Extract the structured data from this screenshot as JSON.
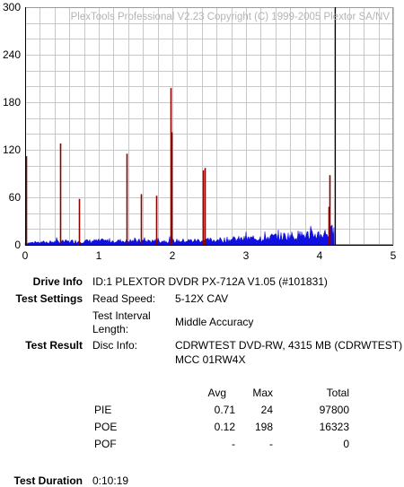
{
  "chart_data": {
    "type": "bar",
    "title": "PlexTools Professional V2.23 Copyright (C) 1999-2005 Plextor SA/NV",
    "xlim": [
      0,
      5
    ],
    "ylim": [
      0,
      300
    ],
    "x_ticks": [
      "0",
      "1",
      "2",
      "3",
      "4",
      "5"
    ],
    "y_ticks": [
      "0",
      "60",
      "120",
      "180",
      "240",
      "300"
    ],
    "grid": true,
    "series": [
      {
        "color": "#1010e0",
        "kind": "pie-noise-area",
        "baseline_points": [
          [
            0.0,
            3
          ],
          [
            0.5,
            5
          ],
          [
            1.0,
            6
          ],
          [
            1.5,
            6
          ],
          [
            2.0,
            6
          ],
          [
            2.5,
            7
          ],
          [
            3.0,
            9
          ],
          [
            3.5,
            13
          ],
          [
            4.0,
            16
          ],
          [
            4.2,
            20
          ]
        ]
      },
      {
        "color": "#8b0000",
        "kind": "poe-spikes",
        "spikes": [
          [
            0.01,
            112
          ],
          [
            0.47,
            128
          ],
          [
            0.73,
            58
          ],
          [
            1.38,
            115
          ],
          [
            1.57,
            64
          ],
          [
            1.78,
            62
          ],
          [
            1.98,
            198
          ],
          [
            1.99,
            142
          ],
          [
            2.42,
            94
          ],
          [
            2.44,
            97
          ],
          [
            4.12,
            48
          ],
          [
            4.14,
            88
          ]
        ]
      },
      {
        "color": "#000000",
        "kind": "end-marker",
        "x": 4.21,
        "value": 300
      }
    ]
  },
  "info": {
    "drive_info_label": "Drive Info",
    "drive_info_value": "ID:1 PLEXTOR DVDR PX-712A V1.05 (#101831)",
    "test_settings_label": "Test Settings",
    "read_speed_label": "Read Speed:",
    "read_speed_value": "5-12X CAV",
    "interval_label_1": "Test Interval",
    "interval_label_2": "Length:",
    "interval_value": "Middle Accuracy",
    "test_result_label": "Test Result",
    "disc_info_label": "Disc Info:",
    "disc_info_value_1": "CDRWTEST DVD-RW, 4315 MB (CDRWTEST)",
    "disc_info_value_2": "MCC 01RW4X",
    "test_duration_label": "Test Duration",
    "test_duration_value": "0:10:19"
  },
  "results_table": {
    "headers": {
      "avg": "Avg",
      "max": "Max",
      "total": "Total"
    },
    "rows": [
      {
        "name": "PIE",
        "avg": "0.71",
        "max": "24",
        "total": "97800"
      },
      {
        "name": "POE",
        "avg": "0.12",
        "max": "198",
        "total": "16323"
      },
      {
        "name": "POF",
        "avg": "-",
        "max": "-",
        "total": "0"
      }
    ]
  }
}
